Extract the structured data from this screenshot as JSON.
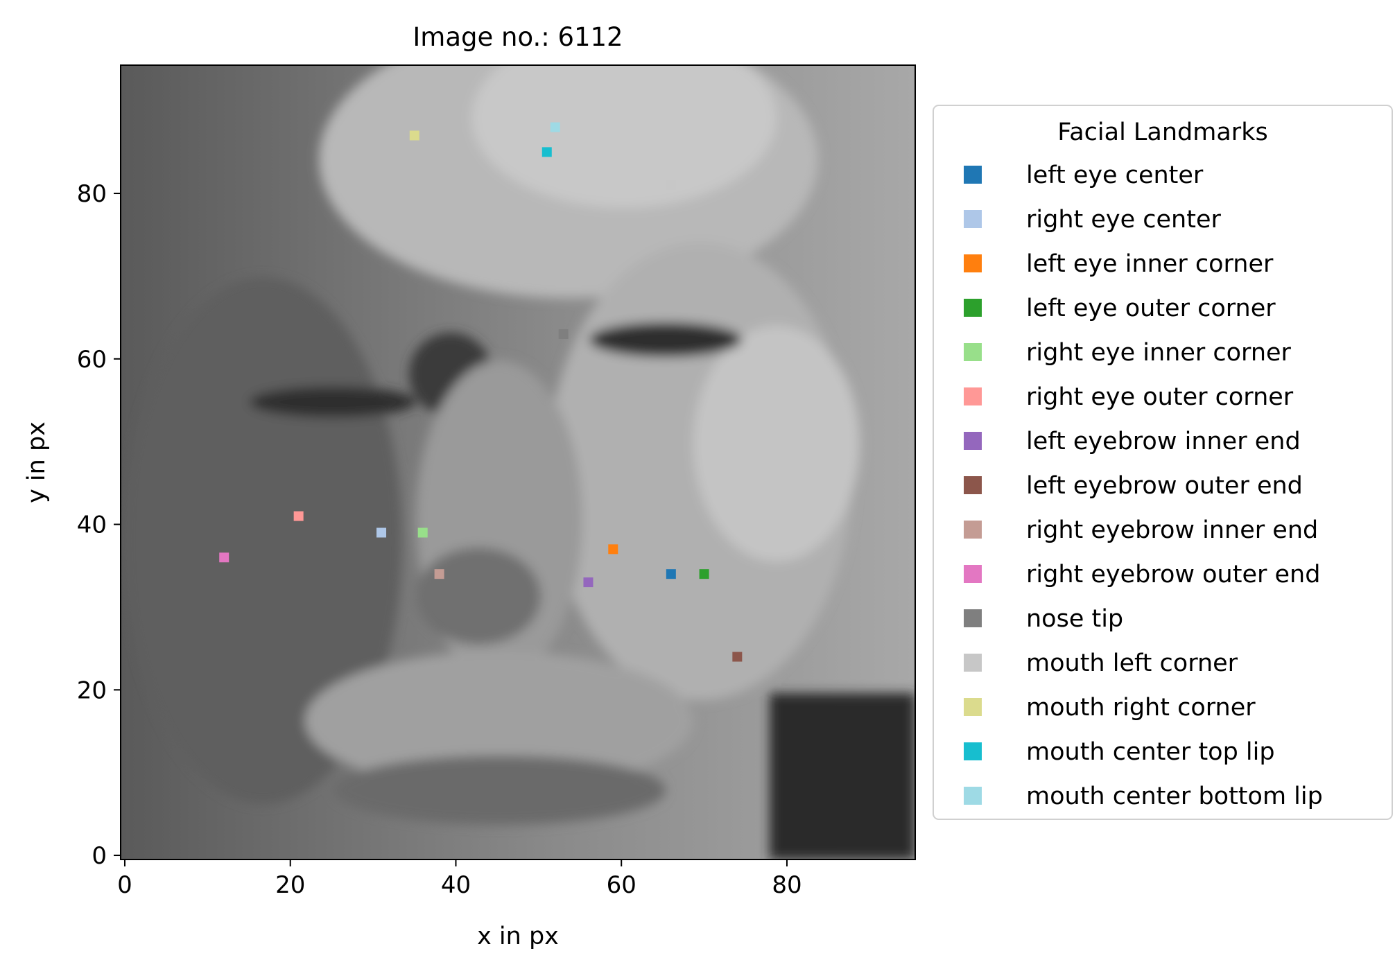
{
  "chart_data": {
    "type": "scatter",
    "title": "Image no.: 6112",
    "xlabel": "x in px",
    "ylabel": "y in px",
    "xlim": [
      -0.5,
      95.5
    ],
    "ylim": [
      95.5,
      -0.5
    ],
    "y_inverted": true,
    "xticks": [
      0,
      20,
      40,
      60,
      80
    ],
    "yticks": [
      0,
      20,
      40,
      60,
      80
    ],
    "background": "96x96 grayscale face photograph",
    "legend": {
      "title": "Facial Landmarks",
      "location": "right, outside plot"
    },
    "series": [
      {
        "name": "left eye center",
        "color": "#1f77b4",
        "x": 66,
        "y": 34
      },
      {
        "name": "right eye center",
        "color": "#aec7e8",
        "x": 31,
        "y": 39
      },
      {
        "name": "left eye inner corner",
        "color": "#ff7f0e",
        "x": 59,
        "y": 37
      },
      {
        "name": "left eye outer corner",
        "color": "#2ca02c",
        "x": 70,
        "y": 34
      },
      {
        "name": "right eye inner corner",
        "color": "#98df8a",
        "x": 36,
        "y": 39
      },
      {
        "name": "right eye outer corner",
        "color": "#ff9896",
        "x": 21,
        "y": 41
      },
      {
        "name": "left eyebrow inner end",
        "color": "#9467bd",
        "x": 56,
        "y": 33
      },
      {
        "name": "left eyebrow outer end",
        "color": "#8c564b",
        "x": 74,
        "y": 24
      },
      {
        "name": "right eyebrow inner end",
        "color": "#c49c94",
        "x": 38,
        "y": 34
      },
      {
        "name": "right eyebrow outer end",
        "color": "#e377c2",
        "x": 12,
        "y": 36
      },
      {
        "name": "nose tip",
        "color": "#7f7f7f",
        "x": 53,
        "y": 63
      },
      {
        "name": "mouth left corner",
        "color": "#c7c7c7",
        "x": 66,
        "y": 81
      },
      {
        "name": "mouth right corner",
        "color": "#dbdb8d",
        "x": 35,
        "y": 87
      },
      {
        "name": "mouth center top lip",
        "color": "#17becf",
        "x": 51,
        "y": 85
      },
      {
        "name": "mouth center bottom lip",
        "color": "#9edae5",
        "x": 52,
        "y": 88
      }
    ]
  }
}
